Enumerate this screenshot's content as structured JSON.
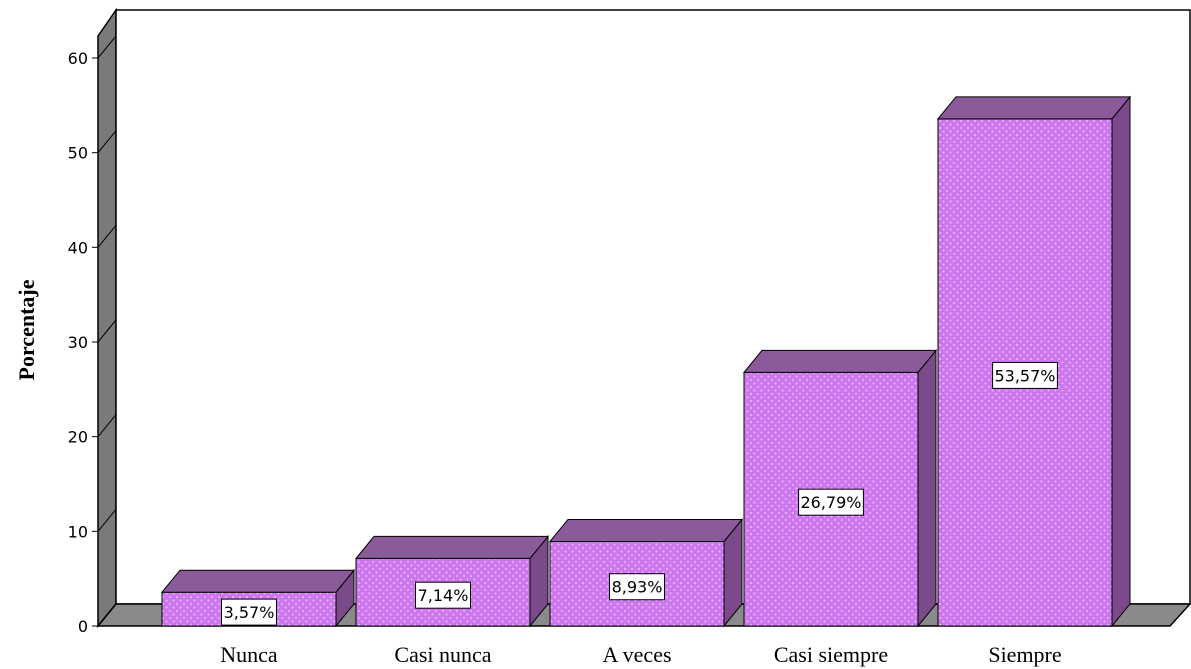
{
  "chart_data": {
    "type": "bar",
    "categories": [
      "Nunca",
      "Casi nunca",
      "A veces",
      "Casi siempre",
      "Siempre"
    ],
    "values": [
      3.57,
      7.14,
      8.93,
      26.79,
      53.57
    ],
    "data_labels": [
      "3,57%",
      "7,14%",
      "8,93%",
      "26,79%",
      "53,57%"
    ],
    "xlabel": "",
    "ylabel": "Porcentaje",
    "ylim": [
      0,
      60
    ],
    "yticks": [
      "0",
      "10",
      "20",
      "30",
      "40",
      "50",
      "60"
    ],
    "grid": false,
    "legend": "none",
    "style": "3d",
    "colors": {
      "bar_front": "#cc77ee",
      "bar_dots": "#eeb8ff",
      "bar_side": "#7a4a8a",
      "bar_top": "#8a5a9a",
      "wall": "#7a7a7a",
      "floor": "#8a8a8a",
      "outline": "#000000"
    }
  }
}
